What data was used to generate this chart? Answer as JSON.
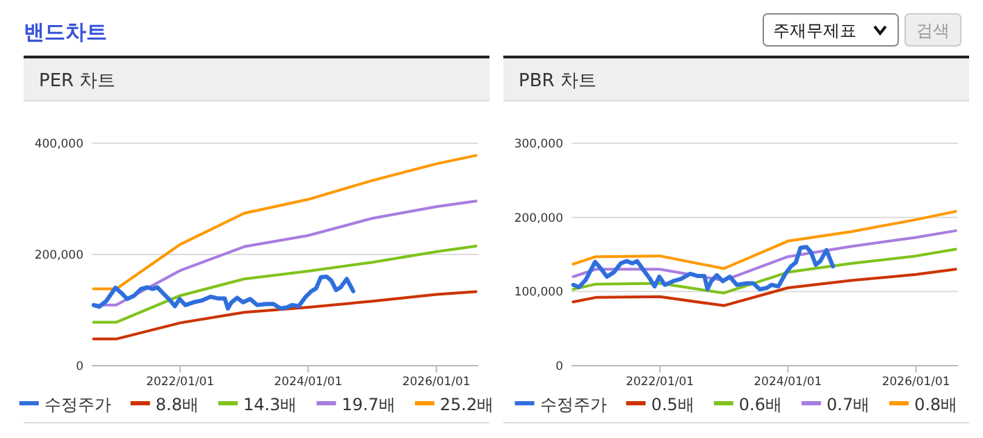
{
  "chart_data": [
    {
      "type": "other",
      "title": "밴드차트",
      "annotations": [
        "주재무제표",
        "검색"
      ]
    },
    {
      "type": "line",
      "title": "PER 차트",
      "xlim": [
        "2020-08-15",
        "2026-08-28"
      ],
      "xticks": [
        {
          "value": "2022-01-01",
          "label": "2022/01/01"
        },
        {
          "value": "2024-01-01",
          "label": "2024/01/01"
        },
        {
          "value": "2026-01-01",
          "label": "2026/01/01"
        }
      ],
      "ylim": [
        0,
        400000
      ],
      "yticks": [
        {
          "value": 0,
          "label": "0"
        },
        {
          "value": 200000,
          "label": "200,000"
        },
        {
          "value": 400000,
          "label": "400,000"
        }
      ],
      "grid": "y",
      "legend": "bottom",
      "series": [
        {
          "name": "수정주가",
          "color": "#2f6fdc",
          "x": [
            "2020-08-26",
            "2020-09-27",
            "2020-11-05",
            "2020-12-28",
            "2021-01-30",
            "2021-03-05",
            "2021-04-14",
            "2021-05-23",
            "2021-06-27",
            "2021-07-28",
            "2021-08-24",
            "2021-10-03",
            "2021-11-06",
            "2021-12-02",
            "2021-12-29",
            "2022-01-30",
            "2022-03-18",
            "2022-05-02",
            "2022-06-24",
            "2022-08-03",
            "2022-09-12",
            "2022-09-30",
            "2022-10-21",
            "2022-11-22",
            "2022-12-26",
            "2023-02-04",
            "2023-03-16",
            "2023-05-08",
            "2023-06-17",
            "2023-07-26",
            "2023-09-04",
            "2023-09-30",
            "2023-11-08",
            "2023-12-18",
            "2024-01-19",
            "2024-02-15",
            "2024-03-13",
            "2024-04-16",
            "2024-05-12",
            "2024-06-08",
            "2024-07-04",
            "2024-08-08",
            "2024-09-14"
          ],
          "values": [
            109000,
            106000,
            116000,
            140000,
            131000,
            120000,
            126000,
            138000,
            141000,
            138000,
            141000,
            128000,
            117000,
            107000,
            120000,
            109000,
            114000,
            117000,
            124000,
            121000,
            121000,
            103000,
            114000,
            122000,
            114000,
            120000,
            109000,
            111000,
            111000,
            103000,
            105000,
            109000,
            107000,
            124000,
            134000,
            139000,
            159000,
            160000,
            153000,
            136000,
            141000,
            156000,
            134000
          ]
        },
        {
          "name": "8.8배",
          "color": "#cc3300",
          "x": [
            "2020-08-25",
            "2021-01-01",
            "2022-01-01",
            "2023-01-01",
            "2024-01-01",
            "2025-01-01",
            "2026-01-01",
            "2026-08-15"
          ],
          "values": [
            48000,
            48000,
            77000,
            96000,
            105000,
            116000,
            128000,
            133000
          ]
        },
        {
          "name": "14.3배",
          "color": "#7fc31c",
          "x": [
            "2020-08-25",
            "2021-01-01",
            "2022-01-01",
            "2023-01-01",
            "2024-01-01",
            "2025-01-01",
            "2026-01-01",
            "2026-08-15"
          ],
          "values": [
            78000,
            78000,
            126000,
            156000,
            170000,
            186000,
            205000,
            215000
          ]
        },
        {
          "name": "19.7배",
          "color": "#a87de0",
          "x": [
            "2020-08-25",
            "2021-01-01",
            "2022-01-01",
            "2023-01-01",
            "2024-01-01",
            "2025-01-01",
            "2026-01-01",
            "2026-08-15"
          ],
          "values": [
            109000,
            109000,
            171000,
            214000,
            234000,
            265000,
            286000,
            296000
          ]
        },
        {
          "name": "25.2배",
          "color": "#ff9900",
          "x": [
            "2020-08-25",
            "2021-01-01",
            "2022-01-01",
            "2023-01-01",
            "2024-01-01",
            "2025-01-01",
            "2026-01-01",
            "2026-08-15"
          ],
          "values": [
            138000,
            138000,
            218000,
            274000,
            299000,
            333000,
            363000,
            378000
          ]
        }
      ]
    },
    {
      "type": "line",
      "title": "PBR 차트",
      "xlim": [
        "2020-08-15",
        "2026-08-28"
      ],
      "xticks": [
        {
          "value": "2022-01-01",
          "label": "2022/01/01"
        },
        {
          "value": "2024-01-01",
          "label": "2024/01/01"
        },
        {
          "value": "2026-01-01",
          "label": "2026/01/01"
        }
      ],
      "ylim": [
        0,
        300000
      ],
      "yticks": [
        {
          "value": 0,
          "label": "0"
        },
        {
          "value": 100000,
          "label": "100,000"
        },
        {
          "value": 200000,
          "label": "200,000"
        },
        {
          "value": 300000,
          "label": "300,000"
        }
      ],
      "grid": "y",
      "legend": "bottom",
      "series": [
        {
          "name": "수정주가",
          "color": "#2f6fdc",
          "x": [
            "2020-08-26",
            "2020-09-27",
            "2020-11-05",
            "2020-12-28",
            "2021-01-30",
            "2021-03-05",
            "2021-04-14",
            "2021-05-23",
            "2021-06-27",
            "2021-07-28",
            "2021-08-24",
            "2021-10-03",
            "2021-11-06",
            "2021-12-02",
            "2021-12-29",
            "2022-01-30",
            "2022-03-18",
            "2022-05-02",
            "2022-06-24",
            "2022-08-03",
            "2022-09-12",
            "2022-09-30",
            "2022-10-21",
            "2022-11-22",
            "2022-12-26",
            "2023-02-04",
            "2023-03-16",
            "2023-05-08",
            "2023-06-17",
            "2023-07-26",
            "2023-09-04",
            "2023-09-30",
            "2023-11-08",
            "2023-12-18",
            "2024-01-19",
            "2024-02-15",
            "2024-03-13",
            "2024-04-16",
            "2024-05-12",
            "2024-06-08",
            "2024-07-04",
            "2024-08-08",
            "2024-09-14"
          ],
          "values": [
            109000,
            106000,
            116000,
            140000,
            131000,
            120000,
            126000,
            138000,
            141000,
            138000,
            141000,
            128000,
            117000,
            107000,
            120000,
            109000,
            114000,
            117000,
            124000,
            121000,
            121000,
            103000,
            114000,
            122000,
            114000,
            120000,
            109000,
            111000,
            111000,
            103000,
            105000,
            109000,
            107000,
            124000,
            134000,
            139000,
            159000,
            160000,
            153000,
            136000,
            141000,
            156000,
            134000
          ]
        },
        {
          "name": "0.5배",
          "color": "#cc3300",
          "x": [
            "2020-08-25",
            "2021-01-01",
            "2022-01-01",
            "2023-01-01",
            "2024-01-01",
            "2025-01-01",
            "2026-01-01",
            "2026-08-15"
          ],
          "values": [
            86000,
            92000,
            93000,
            81000,
            105000,
            115000,
            123000,
            130000
          ]
        },
        {
          "name": "0.6배",
          "color": "#7fc31c",
          "x": [
            "2020-08-25",
            "2021-01-01",
            "2022-01-01",
            "2023-01-01",
            "2024-01-01",
            "2025-01-01",
            "2026-01-01",
            "2026-08-15"
          ],
          "values": [
            103000,
            110000,
            111000,
            98000,
            126000,
            138000,
            148000,
            157000
          ]
        },
        {
          "name": "0.7배",
          "color": "#a87de0",
          "x": [
            "2020-08-25",
            "2021-01-01",
            "2022-01-01",
            "2023-01-01",
            "2024-01-01",
            "2025-01-01",
            "2026-01-01",
            "2026-08-15"
          ],
          "values": [
            120000,
            130000,
            130000,
            115000,
            147000,
            161000,
            173000,
            182000
          ]
        },
        {
          "name": "0.8배",
          "color": "#ff9900",
          "x": [
            "2020-08-25",
            "2021-01-01",
            "2022-01-01",
            "2023-01-01",
            "2024-01-01",
            "2025-01-01",
            "2026-01-01",
            "2026-08-15"
          ],
          "values": [
            137000,
            147000,
            148000,
            131000,
            168000,
            181000,
            197000,
            208000
          ]
        }
      ]
    }
  ]
}
